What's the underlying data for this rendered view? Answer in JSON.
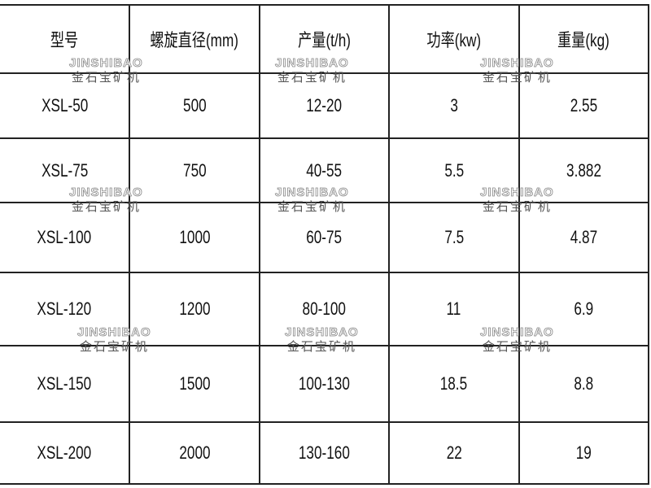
{
  "table": {
    "headers": [
      "型号",
      "螺旋直径(mm)",
      "产量(t/h)",
      "功率(kw)",
      "重量(kg)"
    ],
    "rows": [
      [
        "XSL-50",
        "500",
        "12-20",
        "3",
        "2.55"
      ],
      [
        "XSL-75",
        "750",
        "40-55",
        "5.5",
        "3.882"
      ],
      [
        "XSL-100",
        "1000",
        "60-75",
        "7.5",
        "4.87"
      ],
      [
        "XSL-120",
        "1200",
        "80-100",
        "11",
        "6.9"
      ],
      [
        "XSL-150",
        "1500",
        "100-130",
        "18.5",
        "8.8"
      ],
      [
        "XSL-200",
        "2000",
        "130-160",
        "22",
        "19"
      ]
    ]
  },
  "watermark": {
    "en": "JINSHIBAO",
    "zh": "金石宝矿机"
  }
}
